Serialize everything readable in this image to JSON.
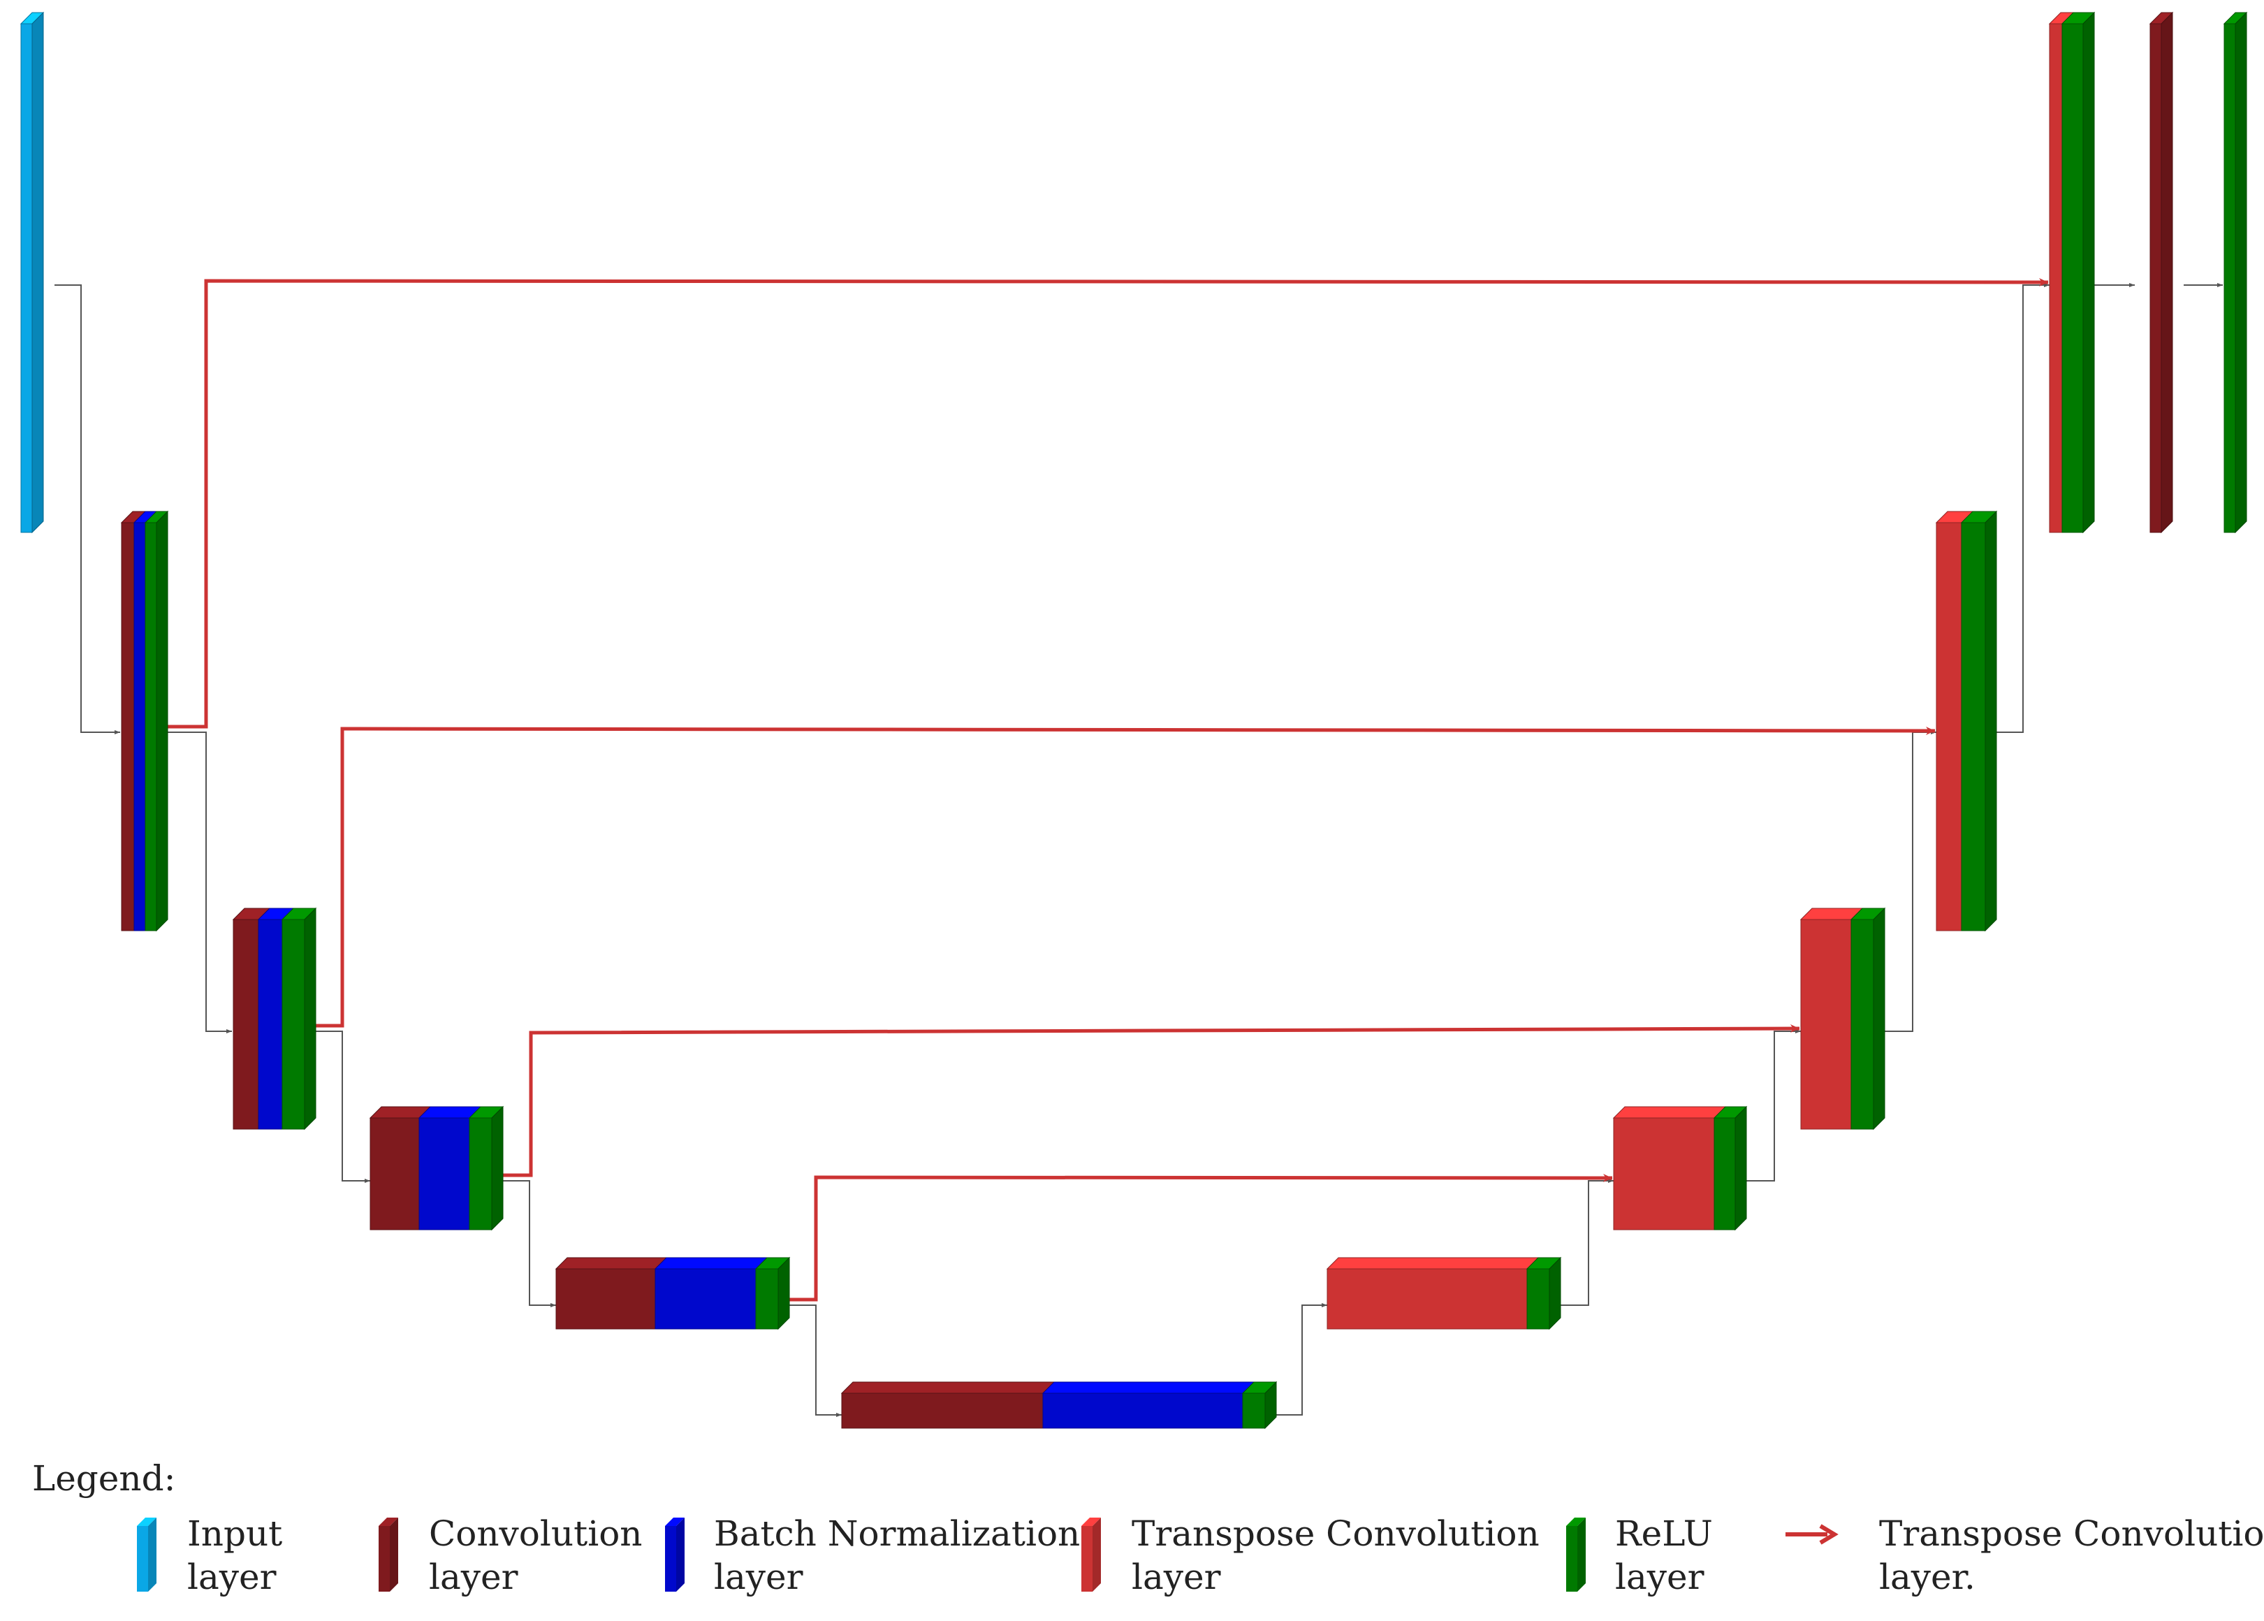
{
  "colors": {
    "input": "#0aa7e6",
    "conv": "#7f1a1e",
    "bn": "#0008cc",
    "tconv": "#cc3333",
    "relu": "#007a00",
    "connector": "#555555",
    "skip": "#cc3333"
  },
  "legend": {
    "title": "Legend:",
    "items": [
      {
        "kind": "input",
        "line1": "Input",
        "line2": "layer"
      },
      {
        "kind": "conv",
        "line1": "Convolution",
        "line2": "layer"
      },
      {
        "kind": "bn",
        "line1": "Batch Normalization",
        "line2": "layer"
      },
      {
        "kind": "tconv",
        "line1": "Transpose Convolution",
        "line2": "layer"
      },
      {
        "kind": "relu",
        "line1": "ReLU",
        "line2": "layer"
      },
      {
        "kind": "skip-arrow",
        "line1": "Transpose Convolution",
        "line2": "layer."
      }
    ]
  },
  "blocks": [
    {
      "id": "input",
      "layers": [
        "input"
      ]
    },
    {
      "id": "enc1",
      "layers": [
        "conv",
        "bn",
        "relu"
      ]
    },
    {
      "id": "enc2",
      "layers": [
        "conv",
        "bn",
        "relu"
      ]
    },
    {
      "id": "enc3",
      "layers": [
        "conv",
        "bn",
        "relu"
      ]
    },
    {
      "id": "enc4",
      "layers": [
        "conv",
        "bn",
        "relu"
      ]
    },
    {
      "id": "bottleneck",
      "layers": [
        "conv",
        "bn",
        "relu"
      ]
    },
    {
      "id": "dec1",
      "layers": [
        "tconv",
        "relu"
      ]
    },
    {
      "id": "dec2",
      "layers": [
        "tconv",
        "relu"
      ]
    },
    {
      "id": "dec3",
      "layers": [
        "tconv",
        "relu"
      ]
    },
    {
      "id": "dec4",
      "layers": [
        "tconv",
        "relu"
      ]
    },
    {
      "id": "dec5",
      "layers": [
        "tconv",
        "relu"
      ]
    },
    {
      "id": "out-conv",
      "layers": [
        "conv"
      ]
    },
    {
      "id": "out-relu",
      "layers": [
        "relu"
      ]
    }
  ]
}
